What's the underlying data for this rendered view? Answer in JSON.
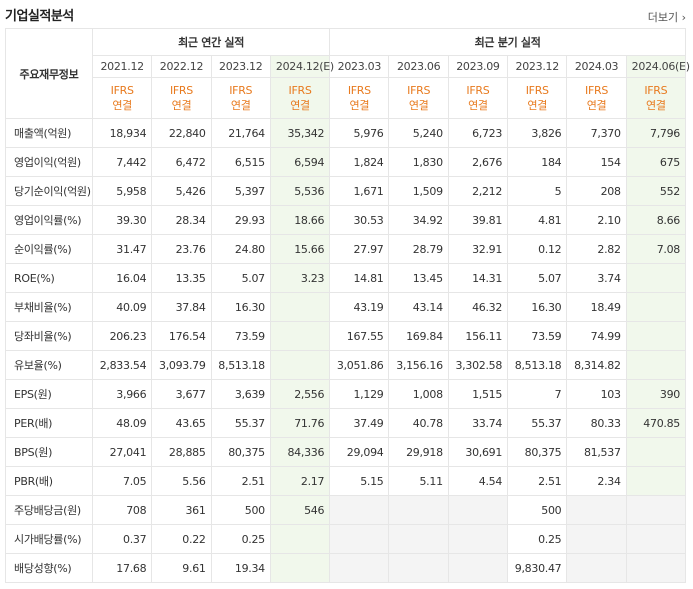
{
  "header": {
    "title": "기업실적분석",
    "more": "더보기"
  },
  "table": {
    "corner": "주요재무정보",
    "groups": [
      {
        "label": "최근 연간 실적",
        "periods": [
          {
            "label": "2021.12",
            "standard": "IFRS",
            "scope": "연결"
          },
          {
            "label": "2022.12",
            "standard": "IFRS",
            "scope": "연결"
          },
          {
            "label": "2023.12",
            "standard": "IFRS",
            "scope": "연결"
          },
          {
            "label": "2024.12(E)",
            "standard": "IFRS",
            "scope": "연결"
          }
        ]
      },
      {
        "label": "최근 분기 실적",
        "periods": [
          {
            "label": "2023.03",
            "standard": "IFRS",
            "scope": "연결"
          },
          {
            "label": "2023.06",
            "standard": "IFRS",
            "scope": "연결"
          },
          {
            "label": "2023.09",
            "standard": "IFRS",
            "scope": "연결"
          },
          {
            "label": "2023.12",
            "standard": "IFRS",
            "scope": "연결"
          },
          {
            "label": "2024.03",
            "standard": "IFRS",
            "scope": "연결"
          },
          {
            "label": "2024.06(E)",
            "standard": "IFRS",
            "scope": "연결"
          }
        ]
      }
    ],
    "rows": [
      {
        "label": "매출액(억원)",
        "values": [
          "18,934",
          "22,840",
          "21,764",
          "35,342",
          "5,976",
          "5,240",
          "6,723",
          "3,826",
          "7,370",
          "7,796"
        ]
      },
      {
        "label": "영업이익(억원)",
        "values": [
          "7,442",
          "6,472",
          "6,515",
          "6,594",
          "1,824",
          "1,830",
          "2,676",
          "184",
          "154",
          "675"
        ]
      },
      {
        "label": "당기순이익(억원)",
        "values": [
          "5,958",
          "5,426",
          "5,397",
          "5,536",
          "1,671",
          "1,509",
          "2,212",
          "5",
          "208",
          "552"
        ]
      },
      {
        "label": "영업이익률(%)",
        "values": [
          "39.30",
          "28.34",
          "29.93",
          "18.66",
          "30.53",
          "34.92",
          "39.81",
          "4.81",
          "2.10",
          "8.66"
        ]
      },
      {
        "label": "순이익률(%)",
        "values": [
          "31.47",
          "23.76",
          "24.80",
          "15.66",
          "27.97",
          "28.79",
          "32.91",
          "0.12",
          "2.82",
          "7.08"
        ]
      },
      {
        "label": "ROE(%)",
        "values": [
          "16.04",
          "13.35",
          "5.07",
          "3.23",
          "14.81",
          "13.45",
          "14.31",
          "5.07",
          "3.74",
          null
        ]
      },
      {
        "label": "부채비율(%)",
        "values": [
          "40.09",
          "37.84",
          "16.30",
          null,
          "43.19",
          "43.14",
          "46.32",
          "16.30",
          "18.49",
          null
        ]
      },
      {
        "label": "당좌비율(%)",
        "values": [
          "206.23",
          "176.54",
          "73.59",
          null,
          "167.55",
          "169.84",
          "156.11",
          "73.59",
          "74.99",
          null
        ]
      },
      {
        "label": "유보율(%)",
        "values": [
          "2,833.54",
          "3,093.79",
          "8,513.18",
          null,
          "3,051.86",
          "3,156.16",
          "3,302.58",
          "8,513.18",
          "8,314.82",
          null
        ]
      },
      {
        "label": "EPS(원)",
        "values": [
          "3,966",
          "3,677",
          "3,639",
          "2,556",
          "1,129",
          "1,008",
          "1,515",
          "7",
          "103",
          "390"
        ]
      },
      {
        "label": "PER(배)",
        "values": [
          "48.09",
          "43.65",
          "55.37",
          "71.76",
          "37.49",
          "40.78",
          "33.74",
          "55.37",
          "80.33",
          "470.85"
        ]
      },
      {
        "label": "BPS(원)",
        "values": [
          "27,041",
          "28,885",
          "80,375",
          "84,336",
          "29,094",
          "29,918",
          "30,691",
          "80,375",
          "81,537",
          null
        ]
      },
      {
        "label": "PBR(배)",
        "values": [
          "7.05",
          "5.56",
          "2.51",
          "2.17",
          "5.15",
          "5.11",
          "4.54",
          "2.51",
          "2.34",
          null
        ]
      },
      {
        "label": "주당배당금(원)",
        "values": [
          "708",
          "361",
          "500",
          "546",
          null,
          null,
          null,
          "500",
          null,
          null
        ]
      },
      {
        "label": "시가배당률(%)",
        "values": [
          "0.37",
          "0.22",
          "0.25",
          null,
          null,
          null,
          null,
          "0.25",
          null,
          null
        ]
      },
      {
        "label": "배당성향(%)",
        "values": [
          "17.68",
          "9.61",
          "19.34",
          null,
          null,
          null,
          null,
          "9,830.47",
          null,
          null
        ]
      }
    ]
  }
}
